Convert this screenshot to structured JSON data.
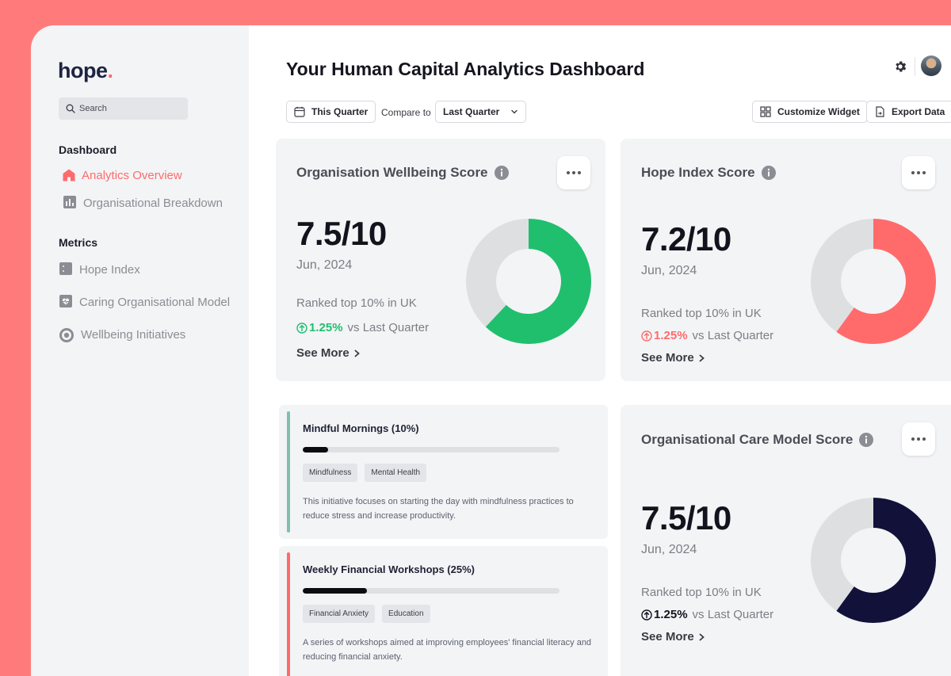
{
  "brand": {
    "name": "hope",
    "dot": "."
  },
  "sidebar": {
    "search_placeholder": "Search",
    "sections": [
      {
        "label": "Dashboard"
      },
      {
        "label": "Metrics"
      }
    ],
    "items": [
      {
        "label": "Analytics Overview",
        "icon": "home-icon",
        "active": true
      },
      {
        "label": "Organisational Breakdown",
        "icon": "bar-chart-icon"
      },
      {
        "label": "Hope Index",
        "icon": "grid-icon"
      },
      {
        "label": "Caring Organisational Model",
        "icon": "heart-pulse-icon"
      },
      {
        "label": "Wellbeing Initiatives",
        "icon": "target-icon"
      }
    ]
  },
  "header": {
    "title": "Your Human Capital Analytics Dashboard",
    "period_label": "This Quarter",
    "compare_label": "Compare to",
    "compare_value": "Last Quarter",
    "customize_label": "Customize Widget",
    "export_label": "Export Data"
  },
  "cards": [
    {
      "title": "Organisation Wellbeing Score",
      "score": "7.5/10",
      "date": "Jun, 2024",
      "rank": "Ranked top 10% in UK",
      "delta_pct": "1.25%",
      "delta_text": "vs Last Quarter",
      "delta_color": "#1fbf6e",
      "see_more": "See More",
      "donut_fraction": 0.62,
      "donut_color": "#1fbf6e"
    },
    {
      "title": "Hope Index Score",
      "score": "7.2/10",
      "date": "Jun, 2024",
      "rank": "Ranked top 10% in UK",
      "delta_pct": "1.25%",
      "delta_text": "vs Last Quarter",
      "delta_color": "#ff6b6b",
      "see_more": "See More",
      "donut_fraction": 0.6,
      "donut_color": "#ff6b6b"
    },
    {
      "title": "Organisational Care Model Score",
      "score": "7.5/10",
      "date": "Jun, 2024",
      "rank": "Ranked top 10% in UK",
      "delta_pct": "1.25%",
      "delta_text": "vs Last Quarter",
      "delta_color": "#13131d",
      "see_more": "See More",
      "donut_fraction": 0.6,
      "donut_color": "#11113a"
    }
  ],
  "initiatives": [
    {
      "title": "Mindful Mornings (10%)",
      "progress": 0.1,
      "accent": "#7fbfb0",
      "tags": [
        "Mindfulness",
        "Mental Health"
      ],
      "description": "This initiative focuses on starting the day with mindfulness practices to reduce stress and increase productivity."
    },
    {
      "title": "Weekly Financial Workshops (25%)",
      "progress": 0.25,
      "accent": "#ff6b6b",
      "tags": [
        "Financial Anxiety",
        "Education"
      ],
      "description": "A series of workshops aimed at improving employees' financial literacy and reducing financial anxiety."
    }
  ],
  "colors": {
    "accent": "#ff6b6b",
    "background": "#ff7b7b",
    "sidebar": "#f3f4f6"
  }
}
